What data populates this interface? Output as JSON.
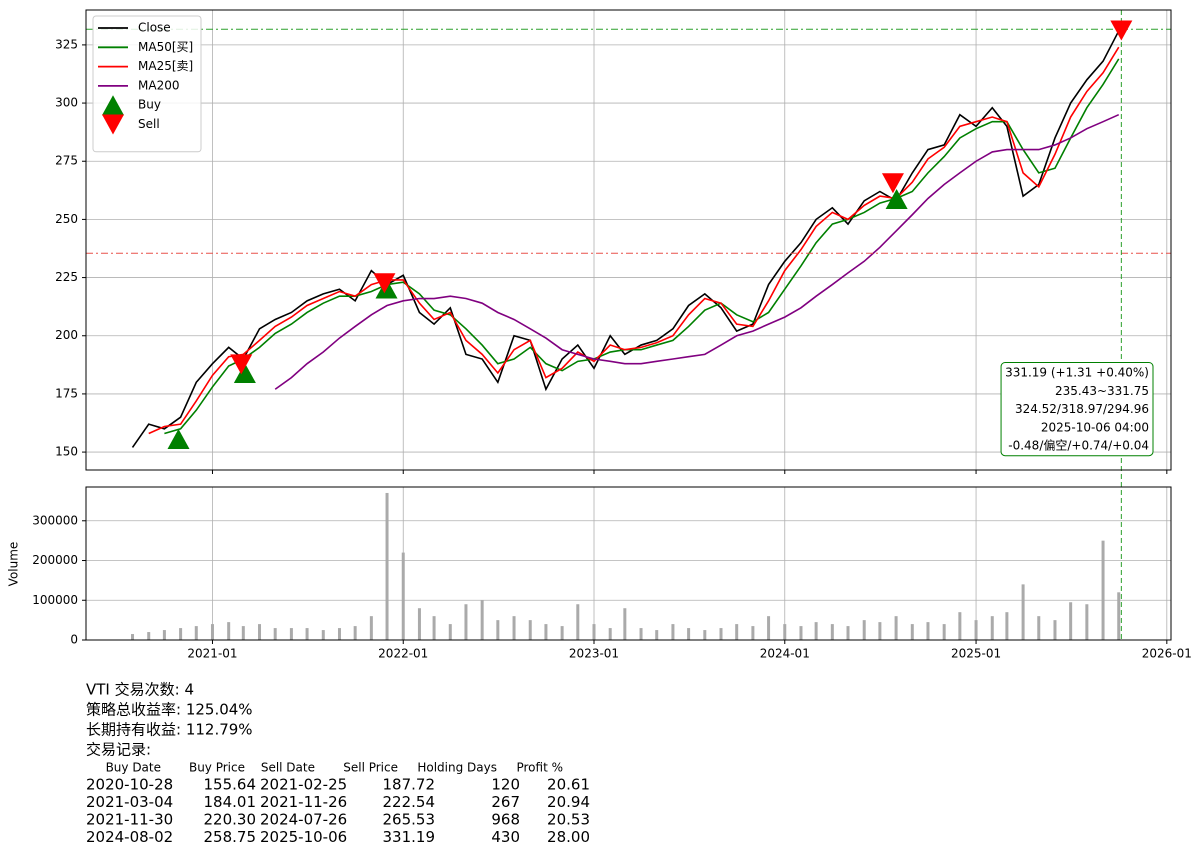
{
  "chart_data": [
    {
      "type": "line",
      "x": [
        "2020-08",
        "2020-09",
        "2020-10",
        "2020-11",
        "2020-12",
        "2021-01",
        "2021-02",
        "2021-03",
        "2021-04",
        "2021-05",
        "2021-06",
        "2021-07",
        "2021-08",
        "2021-09",
        "2021-10",
        "2021-11",
        "2021-12",
        "2022-01",
        "2022-02",
        "2022-03",
        "2022-04",
        "2022-05",
        "2022-06",
        "2022-07",
        "2022-08",
        "2022-09",
        "2022-10",
        "2022-11",
        "2022-12",
        "2023-01",
        "2023-02",
        "2023-03",
        "2023-04",
        "2023-05",
        "2023-06",
        "2023-07",
        "2023-08",
        "2023-09",
        "2023-10",
        "2023-11",
        "2023-12",
        "2024-01",
        "2024-02",
        "2024-03",
        "2024-04",
        "2024-05",
        "2024-06",
        "2024-07",
        "2024-08",
        "2024-09",
        "2024-10",
        "2024-11",
        "2024-12",
        "2025-01",
        "2025-02",
        "2025-03",
        "2025-04",
        "2025-05",
        "2025-06",
        "2025-07",
        "2025-08",
        "2025-09",
        "2025-10"
      ],
      "series": [
        {
          "name": "Close",
          "color": "#000000",
          "values": [
            152,
            162,
            160,
            165,
            180,
            188,
            195,
            190,
            203,
            207,
            210,
            215,
            218,
            220,
            215,
            228,
            222,
            226,
            210,
            205,
            212,
            192,
            190,
            180,
            200,
            198,
            177,
            190,
            196,
            186,
            200,
            192,
            196,
            198,
            203,
            213,
            218,
            212,
            202,
            205,
            222,
            232,
            240,
            250,
            255,
            248,
            258,
            262,
            258,
            270,
            280,
            282,
            295,
            290,
            298,
            290,
            260,
            265,
            285,
            300,
            310,
            318,
            331
          ]
        },
        {
          "name": "MA50[买]",
          "color": "#008000",
          "values": [
            null,
            null,
            158,
            160,
            168,
            178,
            187,
            190,
            195,
            201,
            205,
            210,
            214,
            217,
            217,
            219,
            222,
            223,
            218,
            211,
            209,
            203,
            196,
            188,
            190,
            195,
            188,
            185,
            189,
            190,
            193,
            194,
            194,
            196,
            198,
            204,
            211,
            214,
            209,
            206,
            210,
            220,
            230,
            240,
            248,
            250,
            253,
            257,
            259,
            262,
            270,
            277,
            285,
            289,
            292,
            292,
            280,
            270,
            272,
            285,
            298,
            308,
            319
          ]
        },
        {
          "name": "MA25[卖]",
          "color": "#ff0000",
          "values": [
            null,
            158,
            161,
            162,
            172,
            183,
            191,
            192,
            198,
            204,
            208,
            213,
            216,
            219,
            217,
            222,
            224,
            224,
            214,
            207,
            210,
            198,
            192,
            184,
            194,
            198,
            182,
            186,
            193,
            189,
            196,
            194,
            195,
            197,
            200,
            209,
            216,
            214,
            205,
            204,
            215,
            228,
            237,
            247,
            253,
            250,
            256,
            260,
            259,
            266,
            276,
            281,
            290,
            292,
            294,
            292,
            270,
            264,
            278,
            294,
            305,
            313,
            324
          ]
        },
        {
          "name": "MA200",
          "color": "#800080",
          "values": [
            null,
            null,
            null,
            null,
            null,
            null,
            null,
            null,
            null,
            177,
            182,
            188,
            193,
            199,
            204,
            209,
            213,
            215,
            216,
            216,
            217,
            216,
            214,
            210,
            207,
            203,
            199,
            194,
            192,
            190,
            189,
            188,
            188,
            189,
            190,
            191,
            192,
            196,
            200,
            202,
            205,
            208,
            212,
            217,
            222,
            227,
            232,
            238,
            245,
            252,
            259,
            265,
            270,
            275,
            279,
            280,
            280,
            280,
            282,
            285,
            289,
            292,
            295
          ]
        }
      ],
      "markers": [
        {
          "name": "Buy",
          "color": "#008000",
          "shape": "up",
          "x": [
            "2020-10-28",
            "2021-03-04",
            "2021-11-30",
            "2024-08-02"
          ],
          "values": [
            155.64,
            184.01,
            220.3,
            258.75
          ]
        },
        {
          "name": "Sell",
          "color": "#ff0000",
          "shape": "down",
          "x": [
            "2021-02-25",
            "2021-11-26",
            "2024-07-26",
            "2025-10-06"
          ],
          "values": [
            187.72,
            222.54,
            265.53,
            331.19
          ]
        }
      ],
      "hlines": [
        {
          "value": 331.75,
          "color": "#2ca02c"
        },
        {
          "value": 235.43,
          "color": "#e8504a"
        }
      ],
      "vline": {
        "x": "2025-10-06",
        "color": "#2ca02c"
      },
      "annotation": [
        "331.19 (+1.31 +0.40%)",
        "235.43~331.75",
        "324.52/318.97/294.96",
        "2025-10-06 04:00",
        "-0.48/偏空/+0.74/+0.04"
      ],
      "annotation_color": "#008000",
      "xlim": [
        "2020-05-04",
        "2026-01-09"
      ],
      "ylim": [
        142.3,
        340
      ],
      "yticks": [
        150,
        175,
        200,
        225,
        250,
        275,
        300,
        325
      ],
      "grid": true,
      "legend": "upper left"
    },
    {
      "type": "bar",
      "x": [
        "2020-08",
        "2020-09",
        "2020-10",
        "2020-11",
        "2020-12",
        "2021-01",
        "2021-02",
        "2021-03",
        "2021-04",
        "2021-05",
        "2021-06",
        "2021-07",
        "2021-08",
        "2021-09",
        "2021-10",
        "2021-11",
        "2021-12",
        "2022-01",
        "2022-02",
        "2022-03",
        "2022-04",
        "2022-05",
        "2022-06",
        "2022-07",
        "2022-08",
        "2022-09",
        "2022-10",
        "2022-11",
        "2022-12",
        "2023-01",
        "2023-02",
        "2023-03",
        "2023-04",
        "2023-05",
        "2023-06",
        "2023-07",
        "2023-08",
        "2023-09",
        "2023-10",
        "2023-11",
        "2023-12",
        "2024-01",
        "2024-02",
        "2024-03",
        "2024-04",
        "2024-05",
        "2024-06",
        "2024-07",
        "2024-08",
        "2024-09",
        "2024-10",
        "2024-11",
        "2024-12",
        "2025-01",
        "2025-02",
        "2025-03",
        "2025-04",
        "2025-05",
        "2025-06",
        "2025-07",
        "2025-08",
        "2025-09",
        "2025-10"
      ],
      "values": [
        15000,
        20000,
        25000,
        30000,
        35000,
        40000,
        45000,
        35000,
        40000,
        30000,
        30000,
        30000,
        25000,
        30000,
        35000,
        60000,
        370000,
        220000,
        80000,
        60000,
        40000,
        90000,
        100000,
        50000,
        60000,
        50000,
        40000,
        35000,
        90000,
        40000,
        30000,
        80000,
        30000,
        25000,
        40000,
        30000,
        25000,
        30000,
        40000,
        35000,
        60000,
        40000,
        35000,
        45000,
        40000,
        35000,
        50000,
        45000,
        60000,
        40000,
        45000,
        40000,
        70000,
        50000,
        60000,
        70000,
        140000,
        60000,
        50000,
        95000,
        90000,
        250000,
        120000
      ],
      "color": "#aaaaaa",
      "ylabel": "Volume",
      "xlim": [
        "2020-05-04",
        "2026-01-09"
      ],
      "xticks": [
        "2021-01",
        "2022-01",
        "2023-01",
        "2024-01",
        "2025-01",
        "2026-01"
      ],
      "ylim": [
        0,
        385000
      ],
      "yticks": [
        0,
        100000,
        200000,
        300000
      ],
      "grid": true
    }
  ],
  "report": {
    "summary": [
      "VTI 交易次数: 4",
      "策略总收益率: 125.04%",
      "长期持有收益: 112.79%",
      "交易记录:"
    ],
    "table": {
      "header": [
        "Buy Date",
        "Buy Price",
        "Sell Date",
        "Sell Price",
        "Holding Days",
        "Profit %"
      ],
      "rows": [
        [
          "2020-10-28",
          "155.64",
          "2021-02-25",
          "187.72",
          "120",
          "20.61"
        ],
        [
          "2021-03-04",
          "184.01",
          "2021-11-26",
          "222.54",
          "267",
          "20.94"
        ],
        [
          "2021-11-30",
          "220.30",
          "2024-07-26",
          "265.53",
          "968",
          "20.53"
        ],
        [
          "2024-08-02",
          "258.75",
          "2025-10-06",
          "331.19",
          "430",
          "28.00"
        ]
      ]
    }
  }
}
